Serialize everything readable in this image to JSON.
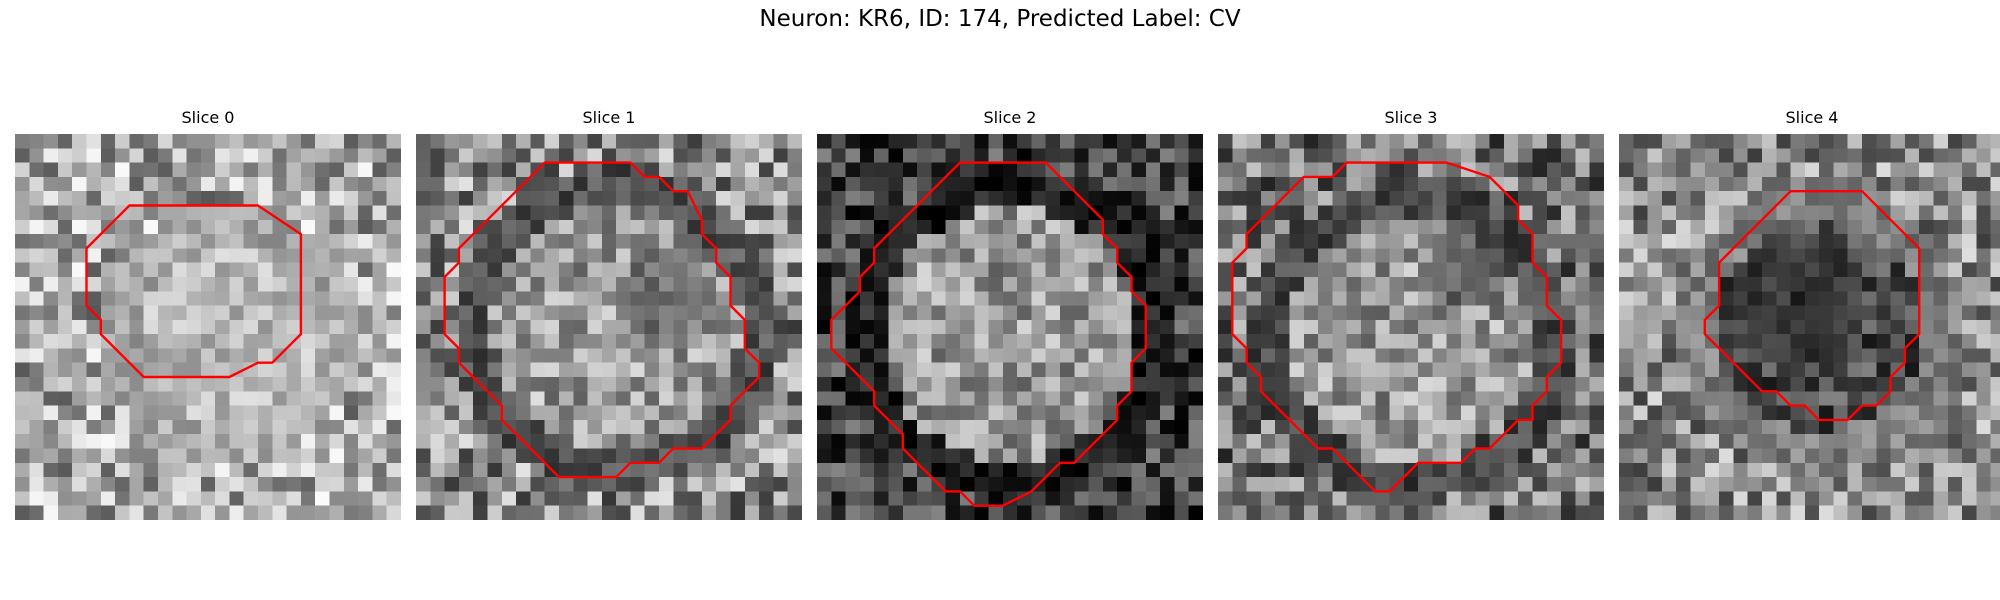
{
  "figure": {
    "title": "Neuron: KR6, ID: 174, Predicted Label: CV",
    "contour_color": "#ff0000",
    "panels": [
      {
        "title": "Slice 0",
        "seed": 11,
        "bg": 0.66,
        "bg_spread": 0.32,
        "cx": 14.5,
        "cy": 13.5,
        "r": 7.6,
        "in_level": 0.72,
        "in_spread": 0.16,
        "ring_level": 0.66,
        "dark_blob": null,
        "contour": [
          [
            11,
            5
          ],
          [
            17,
            5
          ],
          [
            20,
            7
          ],
          [
            20,
            14
          ],
          [
            18,
            16
          ],
          [
            17,
            16
          ],
          [
            15,
            17
          ],
          [
            9,
            17
          ],
          [
            6,
            14
          ],
          [
            6,
            13
          ],
          [
            5,
            12
          ],
          [
            5,
            11
          ],
          [
            5,
            8
          ],
          [
            7,
            6
          ],
          [
            8,
            5
          ],
          [
            10,
            5
          ]
        ]
      },
      {
        "title": "Slice 1",
        "seed": 23,
        "bg": 0.55,
        "bg_spread": 0.34,
        "cx": 13.5,
        "cy": 13.0,
        "r": 9.8,
        "in_level": 0.62,
        "in_spread": 0.25,
        "ring_level": 0.32,
        "dark_blob": [
          17,
          11,
          3.2,
          0.25
        ],
        "contour": [
          [
            10,
            2
          ],
          [
            15,
            2
          ],
          [
            16,
            3
          ],
          [
            17,
            3
          ],
          [
            18,
            4
          ],
          [
            19,
            4
          ],
          [
            20,
            6
          ],
          [
            20,
            7
          ],
          [
            21,
            8
          ],
          [
            21,
            9
          ],
          [
            22,
            10
          ],
          [
            22,
            12
          ],
          [
            23,
            13
          ],
          [
            23,
            14
          ],
          [
            23,
            15
          ],
          [
            24,
            16
          ],
          [
            24,
            17
          ],
          [
            23,
            18
          ],
          [
            22,
            19
          ],
          [
            22,
            20
          ],
          [
            21,
            21
          ],
          [
            20,
            22
          ],
          [
            19,
            22
          ],
          [
            18,
            22
          ],
          [
            17,
            23
          ],
          [
            15,
            23
          ],
          [
            14,
            24
          ],
          [
            10,
            24
          ],
          [
            9,
            23
          ],
          [
            8,
            22
          ],
          [
            7,
            21
          ],
          [
            6,
            20
          ],
          [
            6,
            19
          ],
          [
            5,
            18
          ],
          [
            4,
            17
          ],
          [
            3,
            16
          ],
          [
            3,
            15
          ],
          [
            2,
            14
          ],
          [
            2,
            10
          ],
          [
            3,
            9
          ],
          [
            3,
            8
          ],
          [
            4,
            7
          ],
          [
            5,
            6
          ],
          [
            6,
            5
          ],
          [
            7,
            4
          ],
          [
            8,
            3
          ],
          [
            9,
            2
          ]
        ]
      },
      {
        "title": "Slice 2",
        "seed": 37,
        "bg": 0.26,
        "bg_spread": 0.26,
        "cx": 13.0,
        "cy": 13.5,
        "r": 10.2,
        "in_level": 0.6,
        "in_spread": 0.25,
        "ring_level": 0.12,
        "dark_blob": null,
        "contour": [
          [
            10,
            2
          ],
          [
            16,
            2
          ],
          [
            17,
            3
          ],
          [
            18,
            4
          ],
          [
            19,
            5
          ],
          [
            20,
            6
          ],
          [
            20,
            7
          ],
          [
            21,
            8
          ],
          [
            21,
            9
          ],
          [
            22,
            10
          ],
          [
            22,
            11
          ],
          [
            23,
            12
          ],
          [
            23,
            15
          ],
          [
            22,
            16
          ],
          [
            22,
            18
          ],
          [
            21,
            19
          ],
          [
            21,
            20
          ],
          [
            20,
            21
          ],
          [
            19,
            22
          ],
          [
            18,
            23
          ],
          [
            17,
            23
          ],
          [
            16,
            24
          ],
          [
            15,
            25
          ],
          [
            13,
            26
          ],
          [
            11,
            26
          ],
          [
            10,
            25
          ],
          [
            9,
            25
          ],
          [
            8,
            24
          ],
          [
            7,
            23
          ],
          [
            6,
            22
          ],
          [
            6,
            21
          ],
          [
            5,
            20
          ],
          [
            4,
            19
          ],
          [
            4,
            18
          ],
          [
            3,
            17
          ],
          [
            2,
            16
          ],
          [
            1,
            15
          ],
          [
            1,
            13
          ],
          [
            3,
            11
          ],
          [
            3,
            10
          ],
          [
            4,
            9
          ],
          [
            4,
            8
          ],
          [
            5,
            7
          ],
          [
            6,
            6
          ],
          [
            7,
            5
          ],
          [
            8,
            4
          ],
          [
            9,
            3
          ]
        ]
      },
      {
        "title": "Slice 3",
        "seed": 41,
        "bg": 0.45,
        "bg_spread": 0.32,
        "cx": 13.0,
        "cy": 14.0,
        "r": 9.8,
        "in_level": 0.6,
        "in_spread": 0.25,
        "ring_level": 0.28,
        "dark_blob": [
          17,
          9,
          3.0,
          0.2
        ],
        "contour": [
          [
            10,
            2
          ],
          [
            14,
            2
          ],
          [
            16,
            2
          ],
          [
            19,
            3
          ],
          [
            20,
            4
          ],
          [
            21,
            5
          ],
          [
            21,
            6
          ],
          [
            22,
            7
          ],
          [
            22,
            9
          ],
          [
            23,
            10
          ],
          [
            23,
            12
          ],
          [
            24,
            13
          ],
          [
            24,
            16
          ],
          [
            23,
            17
          ],
          [
            23,
            18
          ],
          [
            22,
            19
          ],
          [
            22,
            20
          ],
          [
            21,
            20
          ],
          [
            20,
            21
          ],
          [
            19,
            22
          ],
          [
            18,
            22
          ],
          [
            17,
            23
          ],
          [
            14,
            23
          ],
          [
            13,
            24
          ],
          [
            12,
            25
          ],
          [
            11,
            25
          ],
          [
            10,
            24
          ],
          [
            9,
            23
          ],
          [
            8,
            22
          ],
          [
            7,
            22
          ],
          [
            6,
            21
          ],
          [
            5,
            20
          ],
          [
            4,
            19
          ],
          [
            3,
            18
          ],
          [
            3,
            17
          ],
          [
            2,
            16
          ],
          [
            2,
            15
          ],
          [
            1,
            14
          ],
          [
            1,
            9
          ],
          [
            2,
            8
          ],
          [
            2,
            7
          ],
          [
            3,
            6
          ],
          [
            4,
            5
          ],
          [
            5,
            4
          ],
          [
            6,
            3
          ],
          [
            8,
            3
          ],
          [
            9,
            2
          ]
        ]
      },
      {
        "title": "Slice 4",
        "seed": 53,
        "bg": 0.55,
        "bg_spread": 0.32,
        "cx": 13.5,
        "cy": 13.0,
        "r": 8.6,
        "in_level": 0.3,
        "in_spread": 0.22,
        "ring_level": 0.5,
        "dark_blob": [
          12,
          11,
          4.5,
          0.12
        ],
        "contour": [
          [
            13,
            4
          ],
          [
            17,
            4
          ],
          [
            19,
            6
          ],
          [
            20,
            7
          ],
          [
            21,
            8
          ],
          [
            21,
            14
          ],
          [
            20,
            15
          ],
          [
            20,
            16
          ],
          [
            19,
            17
          ],
          [
            19,
            18
          ],
          [
            18,
            19
          ],
          [
            17,
            19
          ],
          [
            16,
            20
          ],
          [
            14,
            20
          ],
          [
            13,
            19
          ],
          [
            12,
            19
          ],
          [
            11,
            18
          ],
          [
            10,
            18
          ],
          [
            9,
            17
          ],
          [
            8,
            16
          ],
          [
            7,
            15
          ],
          [
            6,
            14
          ],
          [
            6,
            13
          ],
          [
            7,
            12
          ],
          [
            7,
            11
          ],
          [
            7,
            9
          ],
          [
            8,
            8
          ],
          [
            9,
            7
          ],
          [
            10,
            6
          ],
          [
            11,
            5
          ],
          [
            12,
            4
          ]
        ]
      }
    ]
  }
}
